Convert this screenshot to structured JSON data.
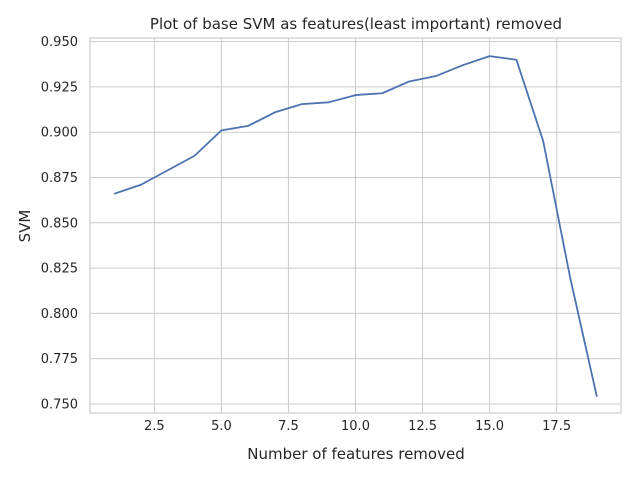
{
  "chart_data": {
    "type": "line",
    "title": "Plot of base SVM as features(least important) removed",
    "xlabel": "Number of features removed",
    "ylabel": "SVM",
    "xlim": [
      0.1,
      19.9
    ],
    "ylim": [
      0.745,
      0.952
    ],
    "xticks": [
      2.5,
      5.0,
      7.5,
      10.0,
      12.5,
      15.0,
      17.5
    ],
    "xtick_labels": [
      "2.5",
      "5.0",
      "7.5",
      "10.0",
      "12.5",
      "15.0",
      "17.5"
    ],
    "yticks": [
      0.75,
      0.775,
      0.8,
      0.825,
      0.85,
      0.875,
      0.9,
      0.925,
      0.95
    ],
    "ytick_labels": [
      "0.750",
      "0.775",
      "0.800",
      "0.825",
      "0.850",
      "0.875",
      "0.900",
      "0.925",
      "0.950"
    ],
    "grid": true,
    "series": [
      {
        "color": "#4c72b0",
        "x": [
          1,
          2,
          3,
          4,
          5,
          6,
          7,
          8,
          9,
          10,
          11,
          12,
          13,
          14,
          15,
          16,
          17,
          18,
          19
        ],
        "y": [
          0.866,
          0.871,
          0.879,
          0.887,
          0.901,
          0.9035,
          0.911,
          0.9155,
          0.9165,
          0.9205,
          0.9215,
          0.928,
          0.931,
          0.937,
          0.942,
          0.94,
          0.895,
          0.82,
          0.754
        ]
      }
    ]
  }
}
